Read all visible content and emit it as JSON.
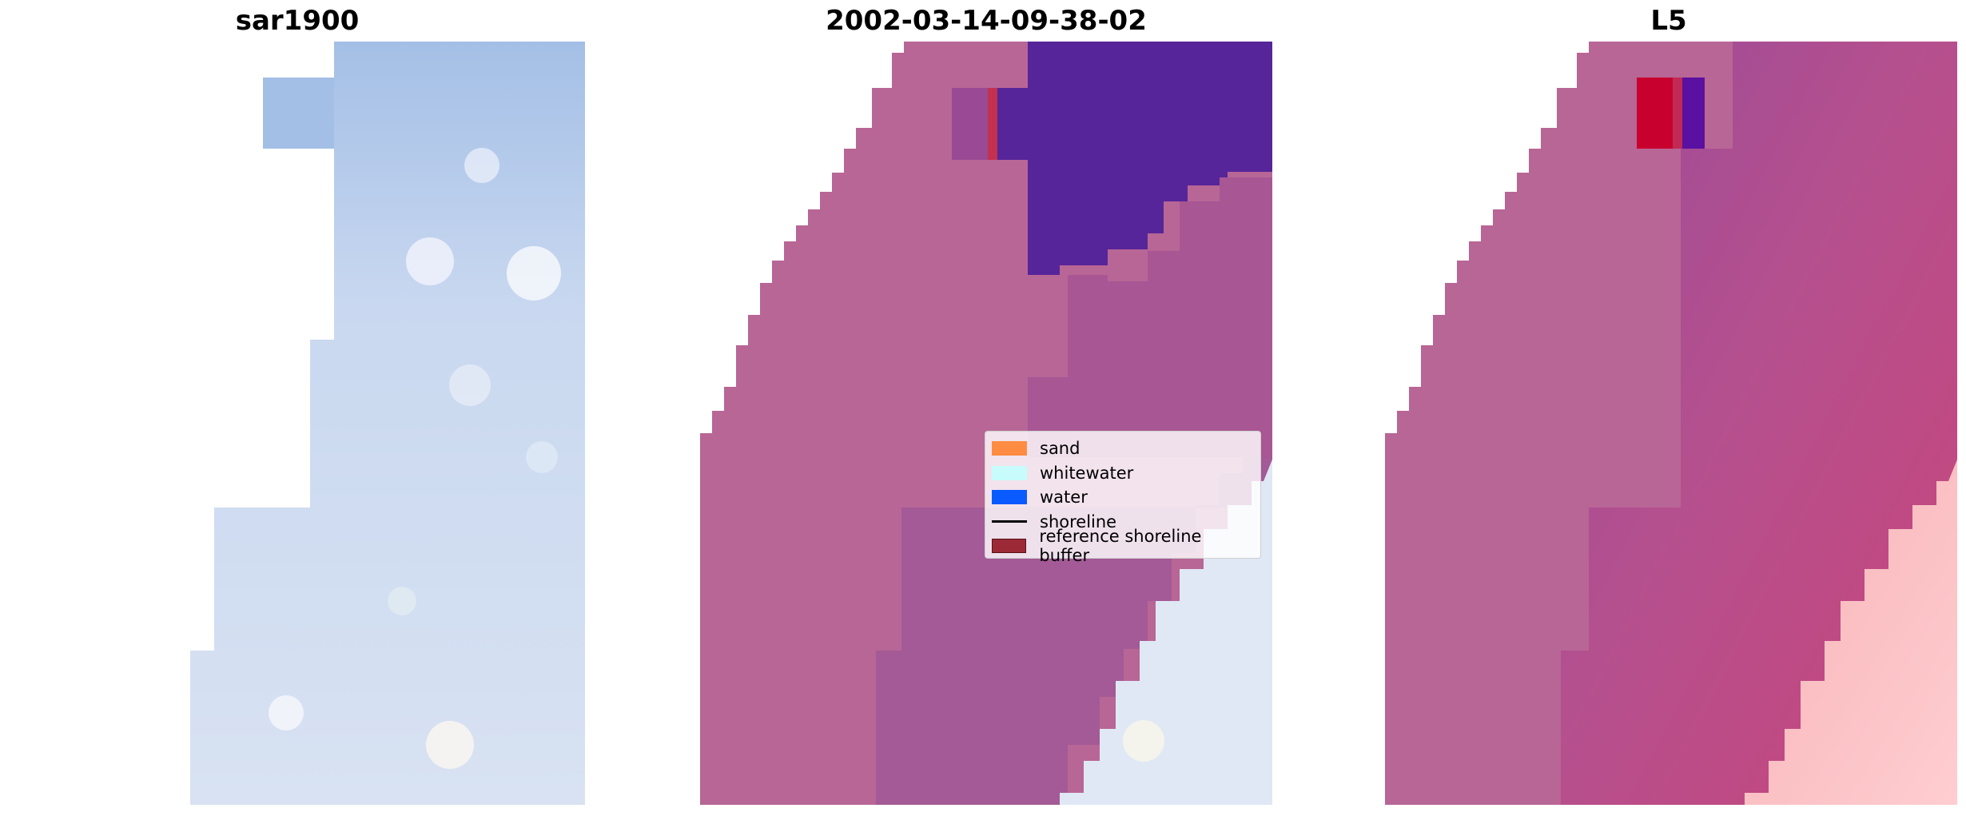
{
  "panels": [
    {
      "title": "sar1900"
    },
    {
      "title": "2002-03-14-09-38-02"
    },
    {
      "title": "L5"
    }
  ],
  "legend": {
    "items": [
      {
        "label": "sand",
        "color": "#ff8c42",
        "kind": "patch"
      },
      {
        "label": "whitewater",
        "color": "#c8fcfc",
        "kind": "patch"
      },
      {
        "label": "water",
        "color": "#0a5bff",
        "kind": "patch"
      },
      {
        "label": "shoreline",
        "color": "#000000",
        "kind": "line"
      },
      {
        "label": "reference shoreline buffer",
        "color": "#9c2a36",
        "kind": "patch"
      }
    ]
  },
  "colors": {
    "sar_blue": "#a4bfe6",
    "sar_light": "#d4e2f4",
    "land_mauve": "#b86696",
    "land_violet": "#a45a96",
    "dark_purple": "#56259a",
    "ocean_pink": "#c04a7e",
    "surf_light": "#f2c4c8",
    "buffer_red": "#c8002e"
  }
}
